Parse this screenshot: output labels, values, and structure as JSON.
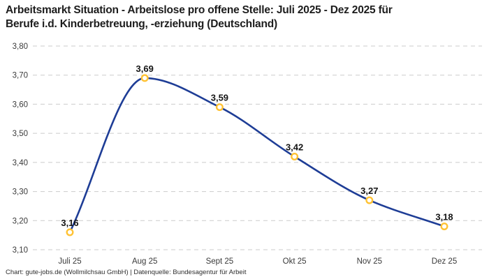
{
  "header": {
    "title_line1": "Arbeitsmarkt Situation - Arbeitslose pro offene Stelle: Juli 2025 - Dez 2025 für",
    "title_line2": "Berufe i.d. Kinderbetreuung, -erziehung (Deutschland)"
  },
  "footer": {
    "text": "Chart: gute-jobs.de (Wollmilchsau GmbH) | Datenquelle: Bundesagentur für Arbeit"
  },
  "chart_data": {
    "type": "line",
    "title": "Arbeitsmarkt Situation - Arbeitslose pro offene Stelle: Juli 2025 - Dez 2025 für Berufe i.d. Kinderbetreuung, -erziehung (Deutschland)",
    "categories": [
      "Juli 25",
      "Aug 25",
      "Sept 25",
      "Okt 25",
      "Nov 25",
      "Dez 25"
    ],
    "values": [
      3.16,
      3.69,
      3.59,
      3.42,
      3.27,
      3.18
    ],
    "value_labels": [
      "3,16",
      "3,69",
      "3,59",
      "3,42",
      "3,27",
      "3,18"
    ],
    "xlabel": "",
    "ylabel": "",
    "ylim": [
      3.1,
      3.8
    ],
    "y_tick_values": [
      3.1,
      3.2,
      3.3,
      3.4,
      3.5,
      3.6,
      3.7,
      3.8
    ],
    "y_tick_labels": [
      "3,10",
      "3,20",
      "3,30",
      "3,40",
      "3,50",
      "3,60",
      "3,70",
      "3,80"
    ],
    "grid": "dashed-horizontal",
    "legend_position": "none",
    "curve": "smooth-monotone",
    "colors": {
      "line": "#1e3d96",
      "marker_stroke": "#ffc233",
      "marker_fill": "#ffffff",
      "gridline": "#cbcbcb",
      "axis_text": "#3a3a3a",
      "data_label": "#141414",
      "title_text": "#1d1d1d",
      "background": "#ffffff"
    }
  }
}
